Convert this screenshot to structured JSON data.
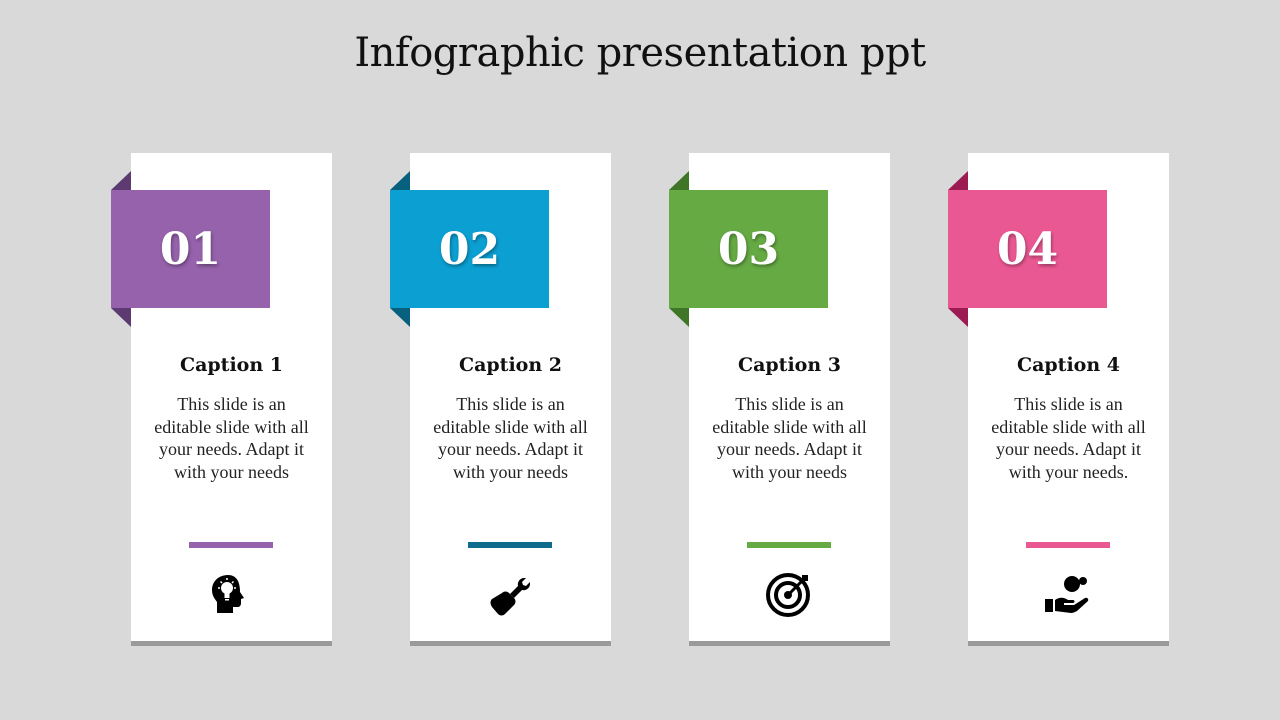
{
  "title": "Infographic presentation ppt",
  "cards": [
    {
      "number": "01",
      "caption": "Caption 1",
      "text": "This slide is an editable slide with all your needs. Adapt it with your needs",
      "icon": "head-lightbulb-icon",
      "color": "#9562ab",
      "dark": "#5e3a73",
      "bar": "#9562ab"
    },
    {
      "number": "02",
      "caption": "Caption 2",
      "text": "This slide is an editable slide with all your needs. Adapt it with your needs",
      "icon": "wrench-hand-icon",
      "color": "#0c9fd2",
      "dark": "#07607d",
      "bar": "#0f6c8c"
    },
    {
      "number": "03",
      "caption": "Caption 3",
      "text": "This slide is an editable slide with all your needs. Adapt it with your needs",
      "icon": "target-icon",
      "color": "#66aa44",
      "dark": "#3f7526",
      "bar": "#66aa44"
    },
    {
      "number": "04",
      "caption": "Caption 4",
      "text": "This slide is an editable slide with all your needs. Adapt it with your needs.",
      "icon": "hand-coin-icon",
      "color": "#ea5893",
      "dark": "#9c1b52",
      "bar": "#ea5893"
    }
  ]
}
